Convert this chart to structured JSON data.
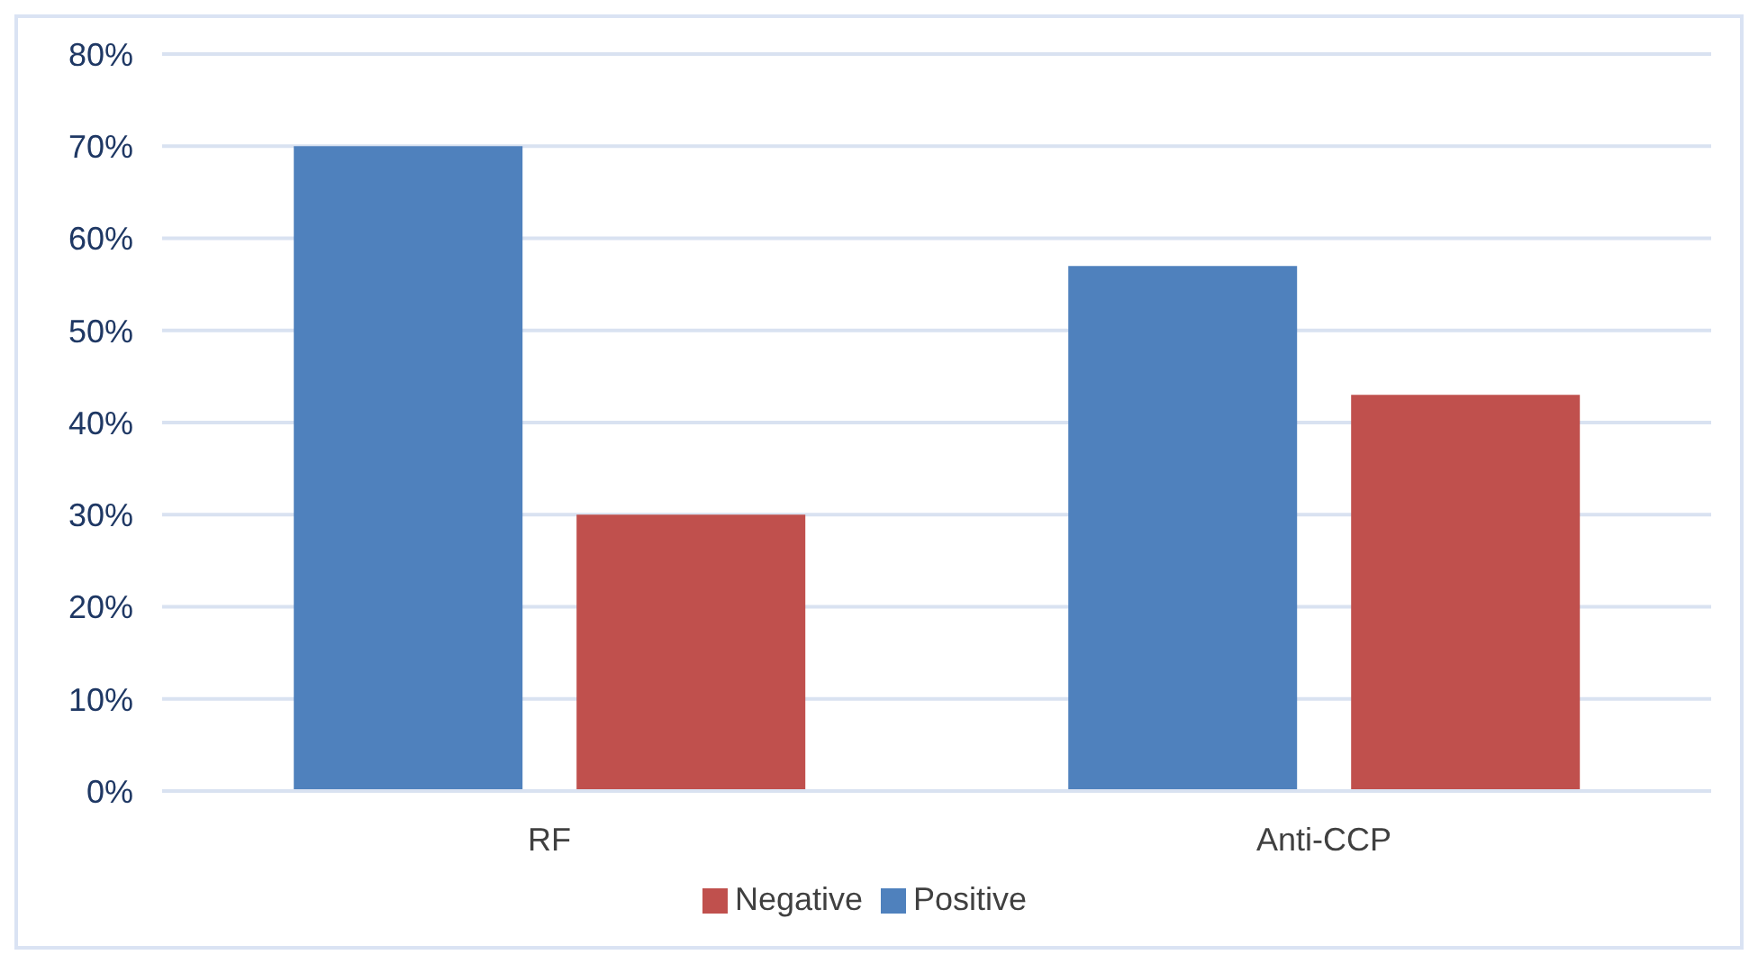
{
  "chart_data": {
    "type": "bar",
    "categories": [
      "RF",
      "Anti-CCP"
    ],
    "series": [
      {
        "name": "Positive",
        "color": "#4f81bd",
        "values": [
          70,
          57
        ]
      },
      {
        "name": "Negative",
        "color": "#c0504d",
        "values": [
          30,
          43
        ]
      }
    ],
    "ylim": [
      0,
      80
    ],
    "yticks": [
      {
        "value": 0,
        "label": "0%"
      },
      {
        "value": 10,
        "label": "10%"
      },
      {
        "value": 20,
        "label": "20%"
      },
      {
        "value": 30,
        "label": "30%"
      },
      {
        "value": 40,
        "label": "40%"
      },
      {
        "value": 50,
        "label": "50%"
      },
      {
        "value": 60,
        "label": "60%"
      },
      {
        "value": 70,
        "label": "70%"
      },
      {
        "value": 80,
        "label": "80%"
      }
    ],
    "grid": "y",
    "legend": "bottom"
  }
}
